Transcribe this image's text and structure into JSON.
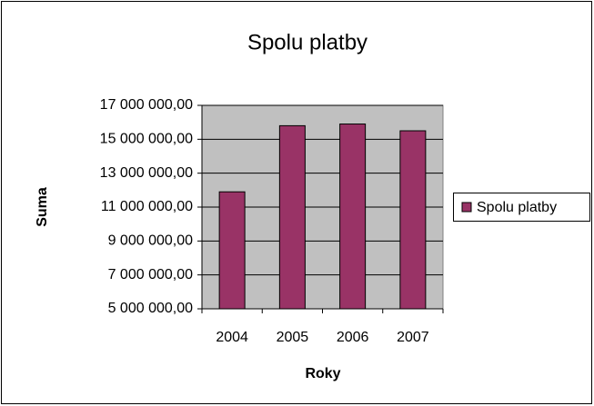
{
  "chart_data": {
    "type": "bar",
    "title": "Spolu platby",
    "x_label": "Roky",
    "y_label": "Suma",
    "categories": [
      "2004",
      "2005",
      "2006",
      "2007"
    ],
    "series": [
      {
        "name": "Spolu platby",
        "color": "#993366",
        "values": [
          11900000,
          15800000,
          15900000,
          15500000
        ]
      }
    ],
    "ylim": [
      5000000,
      17000000
    ],
    "yticks": [
      {
        "value": 5000000,
        "label": "5 000 000,00"
      },
      {
        "value": 7000000,
        "label": "7 000 000,00"
      },
      {
        "value": 9000000,
        "label": "9 000 000,00"
      },
      {
        "value": 11000000,
        "label": "11 000 000,00"
      },
      {
        "value": 13000000,
        "label": "13 000 000,00"
      },
      {
        "value": 15000000,
        "label": "15 000 000,00"
      },
      {
        "value": 17000000,
        "label": "17 000 000,00"
      }
    ],
    "grid": true,
    "legend": "right",
    "plot_background": "#c0c0c0"
  }
}
